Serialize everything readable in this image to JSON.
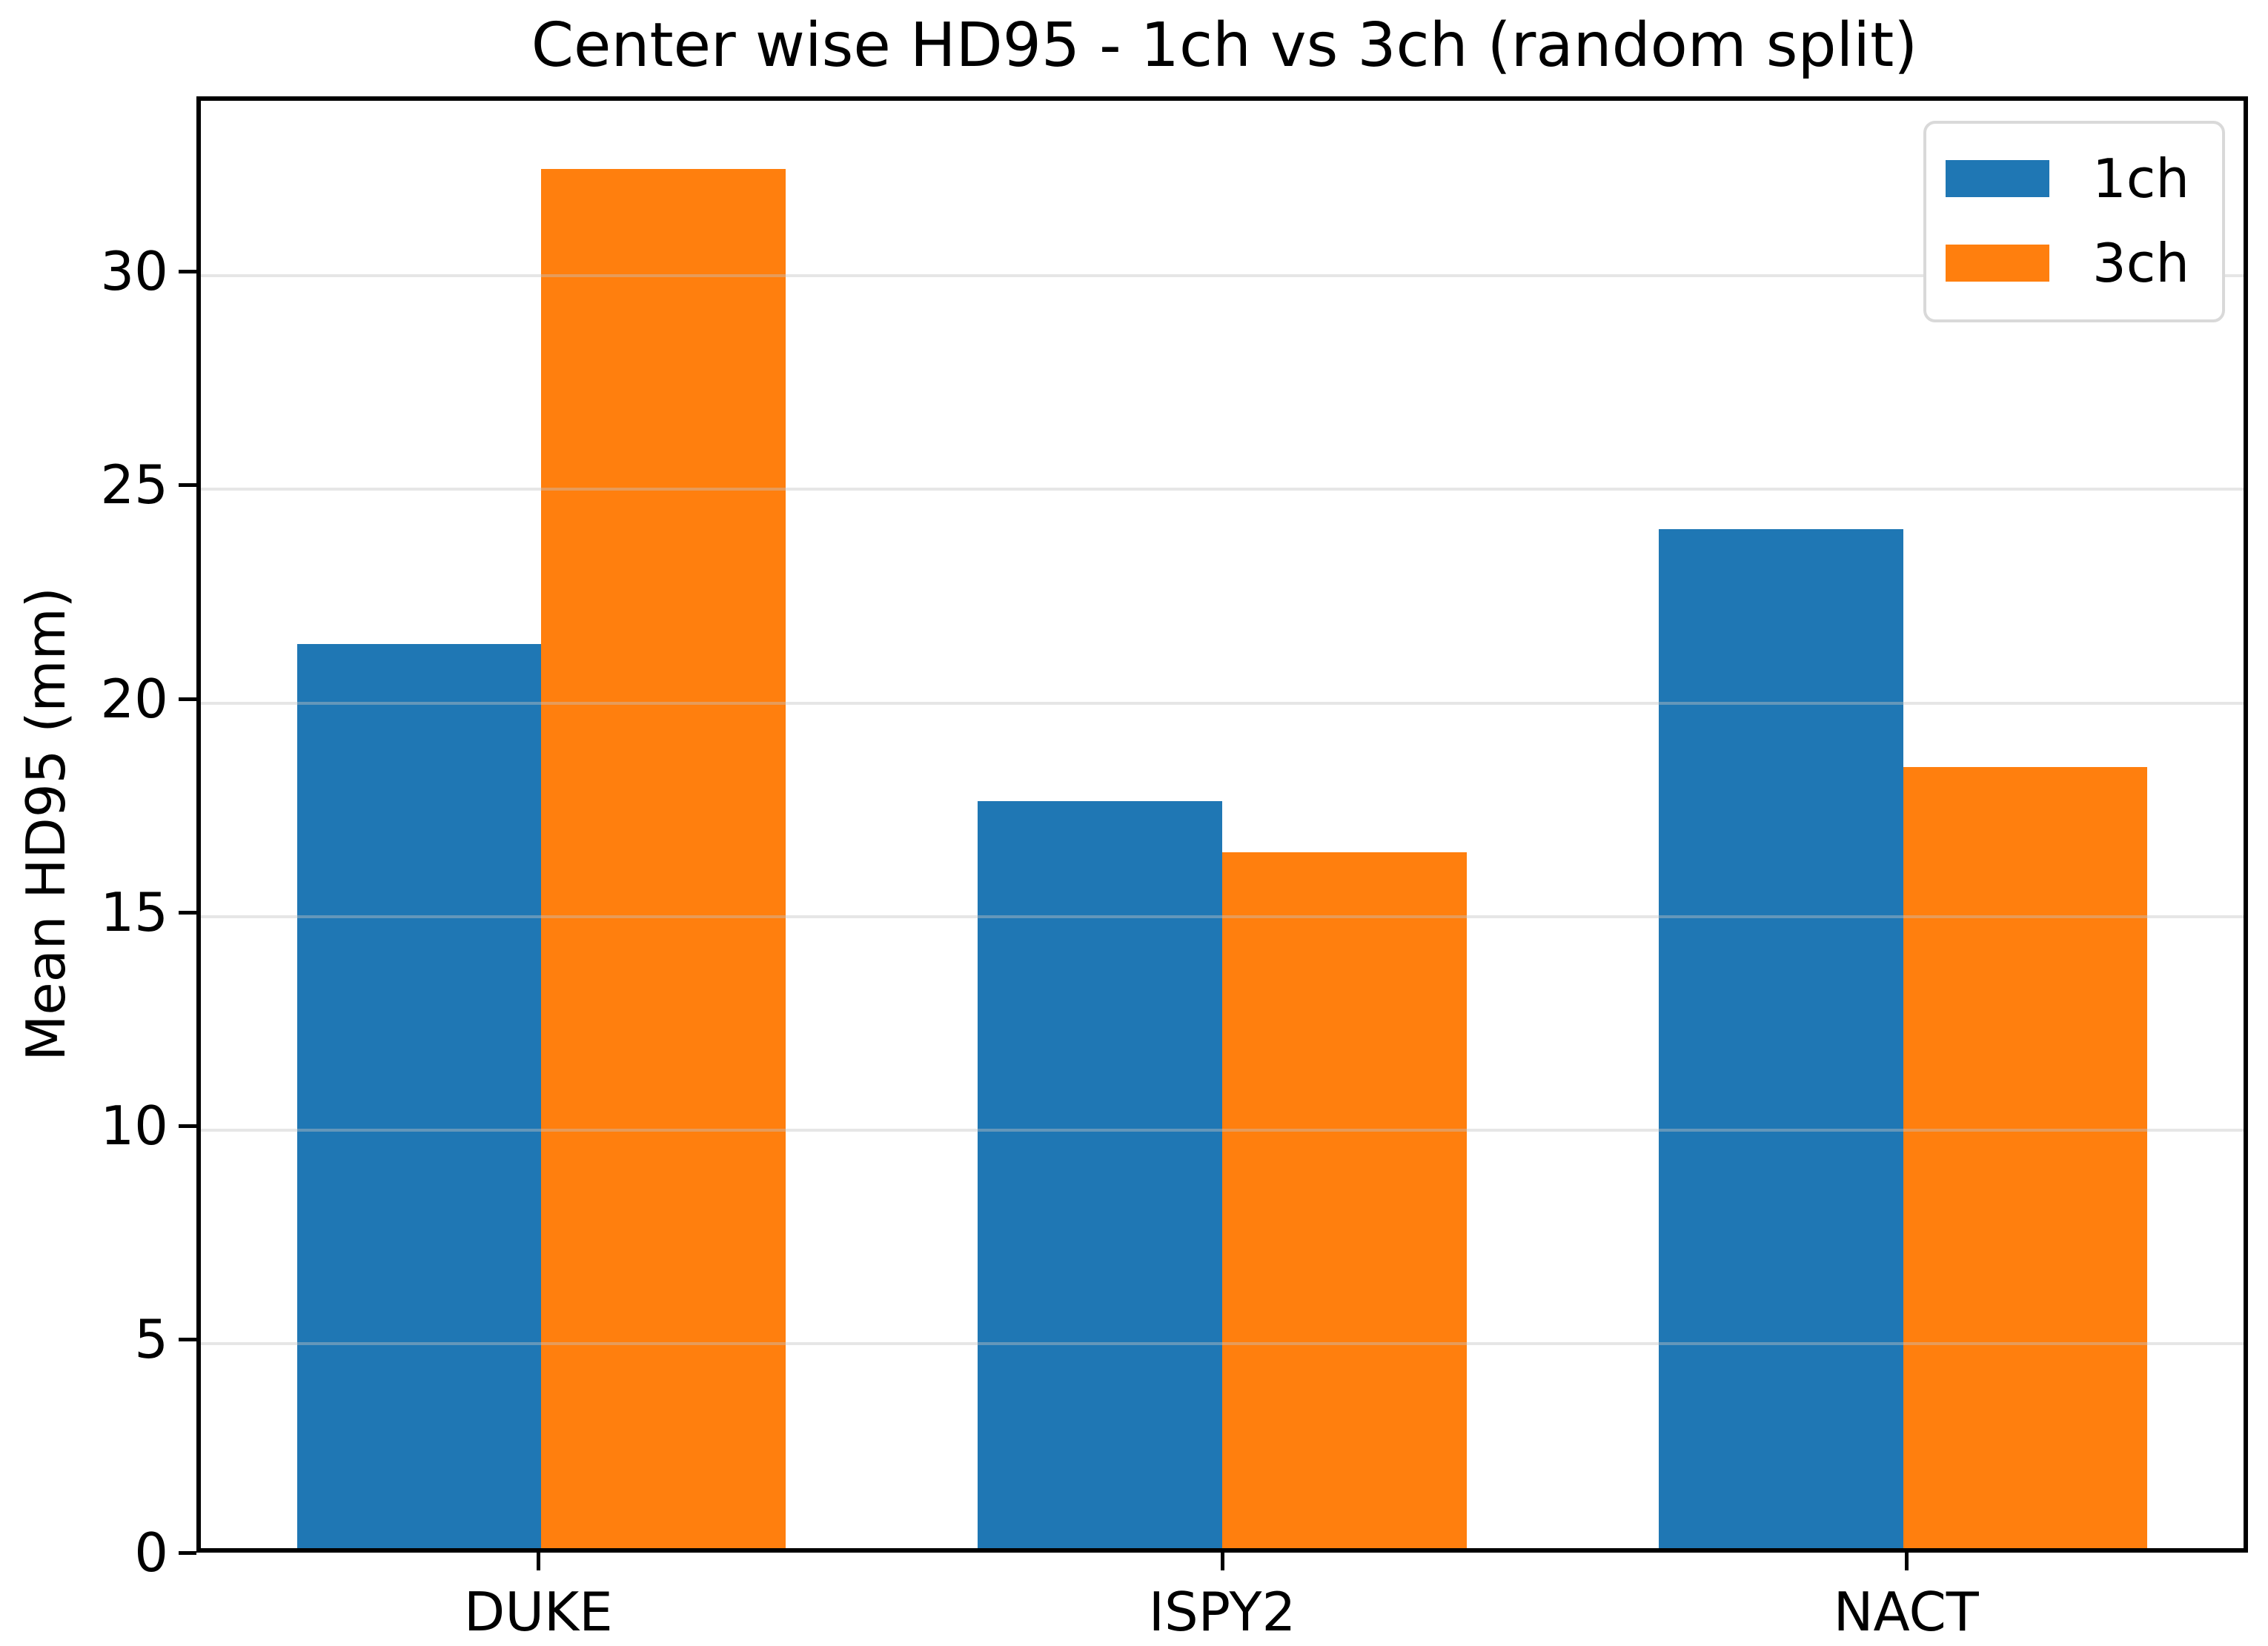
{
  "chart_data": {
    "type": "bar",
    "title": "Center wise HD95 - 1ch vs 3ch (random split)",
    "xlabel": "",
    "ylabel": "Mean HD95 (mm)",
    "categories": [
      "DUKE",
      "ISPY2",
      "NACT"
    ],
    "series": [
      {
        "name": "1ch",
        "color": "#1f77b4",
        "values": [
          21.3,
          17.6,
          24.0
        ]
      },
      {
        "name": "3ch",
        "color": "#ff7f0e",
        "values": [
          32.5,
          16.4,
          18.4
        ]
      }
    ],
    "ylim": [
      0,
      34.1
    ],
    "yticks": [
      0,
      5,
      10,
      15,
      20,
      25,
      30
    ],
    "grid": true,
    "grid_axis": "y",
    "legend_position": "upper right",
    "legend_labels": [
      "1ch",
      "3ch"
    ]
  }
}
